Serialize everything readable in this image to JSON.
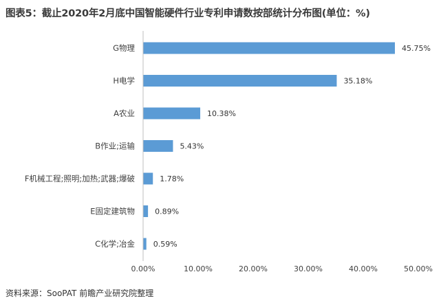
{
  "title": "图表5：截止2020年2月底中国智能硬件行业专利申请数按部统计分布图(单位：%)",
  "source": "资料来源：SooPAT 前瞻产业研究院整理",
  "colors": {
    "bar": "#5b9bd5",
    "axis": "#bfbfbf",
    "text": "#404040"
  },
  "chart_data": {
    "type": "bar",
    "orientation": "horizontal",
    "categories": [
      "G物理",
      "H电学",
      "A农业",
      "B作业;运输",
      "F机械工程;照明;加热;武器;爆破",
      "E固定建筑物",
      "C化学;冶金"
    ],
    "values": [
      45.75,
      35.18,
      10.38,
      5.43,
      1.78,
      0.89,
      0.59
    ],
    "value_labels": [
      "45.75%",
      "35.18%",
      "10.38%",
      "5.43%",
      "1.78%",
      "0.89%",
      "0.59%"
    ],
    "xlim": [
      0,
      50
    ],
    "xticks": [
      0,
      10,
      20,
      30,
      40,
      50
    ],
    "xtick_labels": [
      "0.00%",
      "10.00%",
      "20.00%",
      "30.00%",
      "40.00%",
      "50.00%"
    ],
    "grid": false,
    "legend": "none"
  }
}
